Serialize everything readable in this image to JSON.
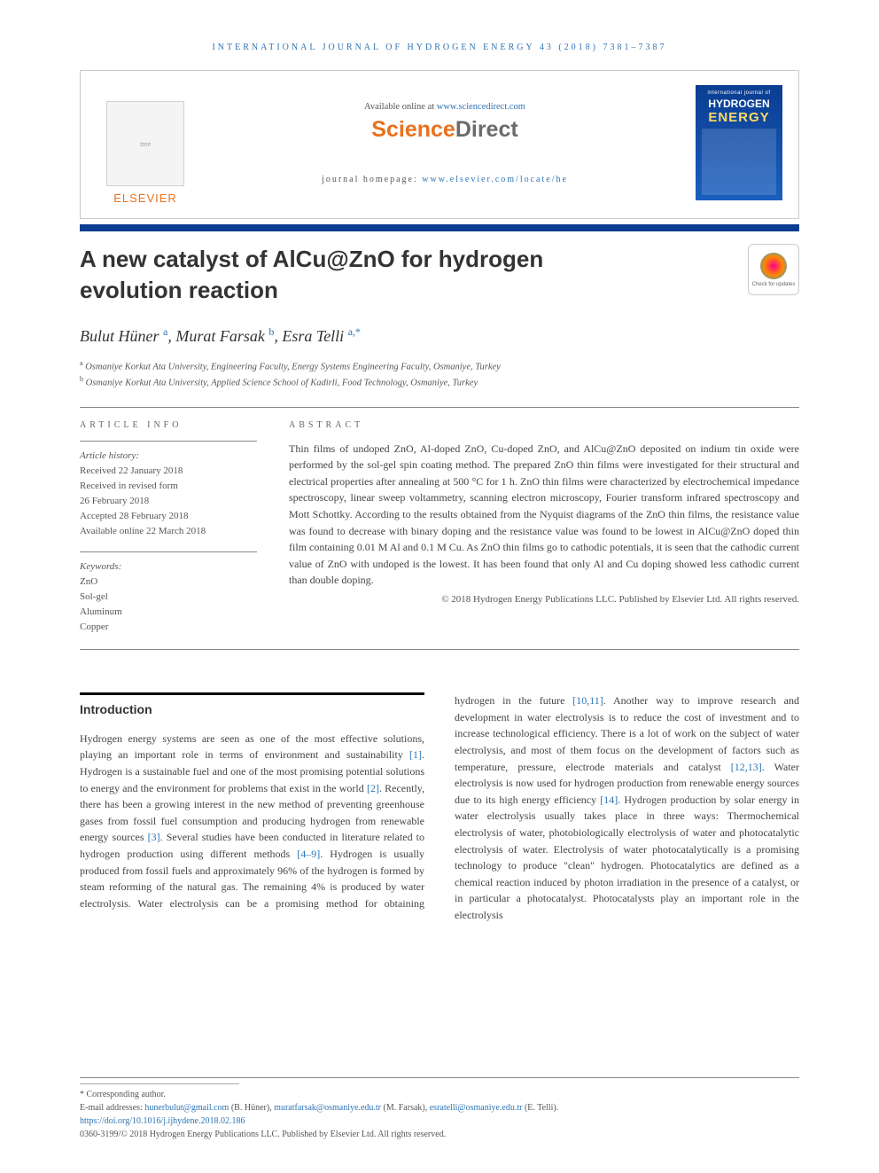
{
  "running_head": "INTERNATIONAL JOURNAL OF HYDROGEN ENERGY 43 (2018) 7381–7387",
  "banner": {
    "publisher_name": "ELSEVIER",
    "available_prefix": "Available online at ",
    "available_link": "www.sciencedirect.com",
    "brand_part1": "Science",
    "brand_part2": "Direct",
    "journal_home_label": "journal homepage: ",
    "journal_home_link": "www.elsevier.com/locate/he",
    "cover_line1": "international journal of",
    "cover_line2": "HYDROGEN",
    "cover_line3": "ENERGY"
  },
  "title": "A new catalyst of AlCu@ZnO for hydrogen evolution reaction",
  "check_updates_label": "Check for updates",
  "authors_html_parts": {
    "a1": "Bulut Hüner",
    "s1": "a",
    "a2": "Murat Farsak",
    "s2": "b",
    "a3": "Esra Telli",
    "s3": "a,*"
  },
  "affiliations": {
    "a": "Osmaniye Korkut Ata University, Engineering Faculty, Energy Systems Engineering Faculty, Osmaniye, Turkey",
    "b": "Osmaniye Korkut Ata University, Applied Science School of Kadirli, Food Technology, Osmaniye, Turkey"
  },
  "article_info_head": "ARTICLE INFO",
  "abstract_head": "ABSTRACT",
  "history": {
    "label": "Article history:",
    "received": "Received 22 January 2018",
    "revised1": "Received in revised form",
    "revised2": "26 February 2018",
    "accepted": "Accepted 28 February 2018",
    "online": "Available online 22 March 2018"
  },
  "keywords": {
    "label": "Keywords:",
    "k1": "ZnO",
    "k2": "Sol-gel",
    "k3": "Aluminum",
    "k4": "Copper"
  },
  "abstract_text": "Thin films of undoped ZnO, Al-doped ZnO, Cu-doped ZnO, and AlCu@ZnO deposited on indium tin oxide were performed by the sol-gel spin coating method. The prepared ZnO thin films were investigated for their structural and electrical properties after annealing at 500 °C for 1 h. ZnO thin films were characterized by electrochemical impedance spectroscopy, linear sweep voltammetry, scanning electron microscopy, Fourier transform infrared spectroscopy and Mott Schottky. According to the results obtained from the Nyquist diagrams of the ZnO thin films, the resistance value was found to decrease with binary doping and the resistance value was found to be lowest in AlCu@ZnO doped thin film containing 0.01 M Al and 0.1 M Cu. As ZnO thin films go to cathodic potentials, it is seen that the cathodic current value of ZnO with undoped is the lowest. It has been found that only Al and Cu doping showed less cathodic current than double doping.",
  "abstract_copyright": "© 2018 Hydrogen Energy Publications LLC. Published by Elsevier Ltd. All rights reserved.",
  "intro_head": "Introduction",
  "intro_p1_a": "Hydrogen energy systems are seen as one of the most effective solutions, playing an important role in terms of environment and sustainability ",
  "intro_r1": "[1]",
  "intro_p1_b": ". Hydrogen is a sustainable fuel and one of the most promising potential solutions to energy and the environment for problems that exist in the world ",
  "intro_r2": "[2]",
  "intro_p1_c": ". Recently, there has been a growing interest in the new method of preventing greenhouse gases from fossil fuel consumption and producing hydrogen from renewable energy sources ",
  "intro_r3": "[3]",
  "intro_p1_d": ". Several studies have been conducted in literature related to hydrogen production using different methods ",
  "intro_r4": "[4–9]",
  "intro_p1_e": ". Hydrogen is usually produced from fossil fuels and approximately 96% of the hydrogen is formed by steam reforming of the natural gas. The remaining 4% is produced by water electrolysis. Water electrolysis can be a promising method for obtaining hydrogen in the future ",
  "intro_r5": "[10,11]",
  "intro_p1_f": ". Another way to improve research and development in water electrolysis is to reduce the cost of investment and to increase technological efficiency. There is a lot of work on the subject of water electrolysis, and most of them focus on the development of factors such as temperature, pressure, electrode materials and catalyst ",
  "intro_r6": "[12,13]",
  "intro_p1_g": ". Water electrolysis is now used for hydrogen production from renewable energy sources due to its high energy efficiency ",
  "intro_r7": "[14]",
  "intro_p1_h": ". Hydrogen production by solar energy in water electrolysis usually takes place in three ways: Thermochemical electrolysis of water, photobiologically electrolysis of water and photocatalytic electrolysis of water. Electrolysis of water photocatalytically is a promising technology to produce \"clean\" hydrogen. Photocatalytics are defined as a chemical reaction induced by photon irradiation in the presence of a catalyst, or in particular a photocatalyst. Photocatalysts play an important role in the electrolysis",
  "footer": {
    "corr": "* Corresponding author.",
    "email_label": "E-mail addresses: ",
    "e1": "hunerbulut@gmail.com",
    "n1": " (B. Hüner), ",
    "e2": "muratfarsak@osmaniye.edu.tr",
    "n2": " (M. Farsak), ",
    "e3": "esratelli@osmaniye.edu.tr",
    "n3": " (E. Telli).",
    "doi": "https://doi.org/10.1016/j.ijhydene.2018.02.186",
    "issn_line": "0360-3199/© 2018 Hydrogen Energy Publications LLC. Published by Elsevier Ltd. All rights reserved."
  },
  "colors": {
    "accent_blue": "#2e74b5",
    "bar_blue": "#0a3d91",
    "elsevier_orange": "#e9711c"
  }
}
